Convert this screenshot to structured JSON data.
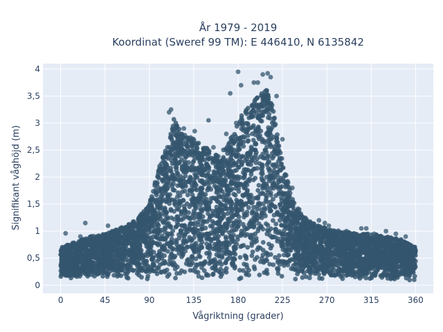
{
  "chart_data": {
    "type": "scatter",
    "title_line1": "År 1979 - 2019",
    "title_line2": "Koordinat (Sweref 99 TM): E 446410, N 6135842",
    "xlabel": "Vågriktning (grader)",
    "ylabel": "Signifikant våghöjd (m)",
    "xlim": [
      -18,
      378
    ],
    "ylim": [
      -0.15,
      4.1
    ],
    "x_ticks": [
      0,
      45,
      90,
      135,
      180,
      225,
      270,
      315,
      360
    ],
    "x_tick_labels": [
      "0",
      "45",
      "90",
      "135",
      "180",
      "225",
      "270",
      "315",
      "360"
    ],
    "y_ticks": [
      0,
      0.5,
      1,
      1.5,
      2,
      2.5,
      3,
      3.5,
      4
    ],
    "y_tick_labels": [
      "0",
      "0,5",
      "1",
      "1,5",
      "2",
      "2,5",
      "3",
      "3,5",
      "4"
    ],
    "grid": true,
    "marker_color": "#34566e",
    "plot_bg": "#e5ecf6",
    "envelope": {
      "direction": [
        0,
        15,
        30,
        45,
        60,
        75,
        90,
        100,
        110,
        115,
        125,
        135,
        145,
        155,
        165,
        175,
        185,
        195,
        205,
        210,
        215,
        225,
        235,
        245,
        255,
        270,
        285,
        300,
        315,
        330,
        345,
        360
      ],
      "upper_height": [
        0.7,
        0.8,
        0.9,
        0.95,
        1.05,
        1.2,
        1.5,
        2.2,
        2.7,
        3.1,
        2.8,
        2.7,
        2.6,
        2.4,
        2.5,
        2.8,
        3.2,
        3.4,
        3.6,
        3.7,
        3.3,
        2.3,
        1.6,
        1.3,
        1.15,
        1.05,
        1.0,
        0.95,
        0.95,
        0.9,
        0.85,
        0.7
      ]
    },
    "outliers": [
      {
        "x": 2,
        "y": 0.7
      },
      {
        "x": 5,
        "y": 0.96
      },
      {
        "x": 20,
        "y": 0.9
      },
      {
        "x": 25,
        "y": 1.15
      },
      {
        "x": 48,
        "y": 1.1
      },
      {
        "x": 58,
        "y": 1.0
      },
      {
        "x": 75,
        "y": 1.15
      },
      {
        "x": 87,
        "y": 1.4
      },
      {
        "x": 98,
        "y": 1.9
      },
      {
        "x": 110,
        "y": 3.2
      },
      {
        "x": 112,
        "y": 3.25
      },
      {
        "x": 118,
        "y": 2.95
      },
      {
        "x": 125,
        "y": 2.9
      },
      {
        "x": 136,
        "y": 2.85
      },
      {
        "x": 150,
        "y": 3.05
      },
      {
        "x": 155,
        "y": 2.55
      },
      {
        "x": 168,
        "y": 2.8
      },
      {
        "x": 172,
        "y": 3.55
      },
      {
        "x": 178,
        "y": 3.0
      },
      {
        "x": 180,
        "y": 3.95
      },
      {
        "x": 183,
        "y": 3.7
      },
      {
        "x": 188,
        "y": 3.2
      },
      {
        "x": 196,
        "y": 3.75
      },
      {
        "x": 200,
        "y": 3.75
      },
      {
        "x": 205,
        "y": 3.9
      },
      {
        "x": 210,
        "y": 3.92
      },
      {
        "x": 213,
        "y": 3.85
      },
      {
        "x": 219,
        "y": 3.5
      },
      {
        "x": 225,
        "y": 2.7
      },
      {
        "x": 235,
        "y": 1.8
      },
      {
        "x": 242,
        "y": 1.4
      },
      {
        "x": 262,
        "y": 1.2
      },
      {
        "x": 268,
        "y": 1.15
      },
      {
        "x": 272,
        "y": 1.1
      },
      {
        "x": 290,
        "y": 1.0
      },
      {
        "x": 305,
        "y": 1.05
      },
      {
        "x": 310,
        "y": 1.05
      },
      {
        "x": 318,
        "y": 0.95
      },
      {
        "x": 330,
        "y": 1.0
      },
      {
        "x": 340,
        "y": 0.95
      },
      {
        "x": 350,
        "y": 0.9
      },
      {
        "x": 358,
        "y": 0.7
      }
    ]
  }
}
